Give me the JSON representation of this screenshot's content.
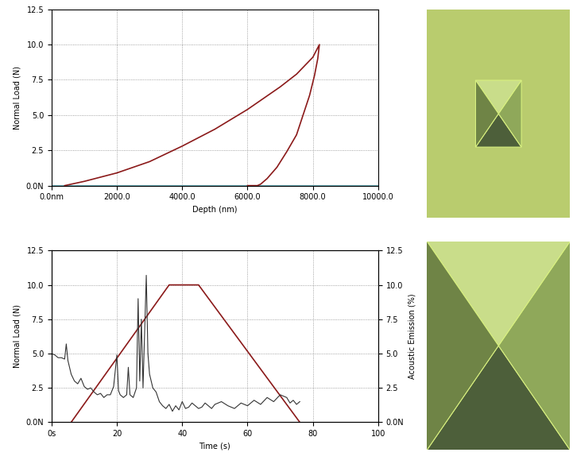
{
  "chart_data": [
    {
      "type": "line",
      "xlabel": "Depth (nm)",
      "ylabel": "Normal Load (N)",
      "xlim": [
        0,
        10000
      ],
      "ylim": [
        0,
        12.5
      ],
      "xticks": [
        {
          "value": 0,
          "label": "0.0nm"
        },
        2000.0,
        4000.0,
        6000.0,
        8000.0,
        10000.0
      ],
      "yticks": [
        {
          "value": 0,
          "label": "0.0N"
        },
        2.5,
        5.0,
        7.5,
        10.0,
        12.5
      ],
      "grid": true,
      "series": [
        {
          "color": "#4a9ca8",
          "x": [
            0,
            10000
          ],
          "values": [
            0,
            0
          ]
        },
        {
          "color": "#8b1a1a",
          "x": [
            400,
            1000,
            2000,
            3000,
            4000,
            5000,
            6000,
            7000,
            7500,
            8000,
            8200,
            8150,
            8050,
            7900,
            7700,
            7500,
            7200,
            6900,
            6600,
            6400,
            6300,
            6000
          ],
          "values": [
            0,
            0.3,
            0.9,
            1.7,
            2.8,
            4.0,
            5.4,
            7.0,
            7.9,
            9.1,
            10.0,
            9.0,
            7.8,
            6.4,
            5.0,
            3.6,
            2.4,
            1.3,
            0.5,
            0.1,
            0,
            0
          ]
        }
      ]
    },
    {
      "type": "line",
      "xlabel": "Time (s)",
      "ylabel": "Normal Load (N)",
      "y2label": "Acoustic Emission (%)",
      "xlim": [
        0,
        100
      ],
      "ylim": [
        0,
        12.5
      ],
      "y2lim": [
        0,
        12.5
      ],
      "xticks": [
        {
          "value": 0,
          "label": "0s"
        },
        20,
        40,
        60,
        80,
        100
      ],
      "yticks": [
        {
          "value": 0,
          "label": "0.0N"
        },
        2.5,
        5.0,
        7.5,
        10.0,
        12.5
      ],
      "y2ticks": [
        {
          "value": 0,
          "label": "0.0N"
        },
        2.5,
        5.0,
        7.5,
        10.0,
        12.5
      ],
      "grid": true,
      "series": [
        {
          "color": "#8b1a1a",
          "x": [
            6,
            36,
            45,
            76
          ],
          "values": [
            0,
            10,
            10,
            0
          ]
        },
        {
          "color": "#333333",
          "axis": "y2",
          "x": [
            0,
            1,
            2,
            3,
            4,
            4.5,
            5,
            6,
            7,
            8,
            9,
            10,
            11,
            12,
            13,
            14,
            15,
            16,
            17,
            18,
            19,
            20,
            20.5,
            21,
            22,
            23,
            23.5,
            24,
            25,
            26,
            26.5,
            27,
            27.5,
            28,
            29,
            29.5,
            30,
            31,
            32,
            33,
            34,
            35,
            36,
            37,
            38,
            39,
            40,
            41,
            42,
            43,
            44,
            45,
            46,
            47,
            48,
            49,
            50,
            52,
            54,
            56,
            58,
            60,
            62,
            64,
            66,
            68,
            70,
            72,
            73,
            74,
            75,
            76
          ],
          "values": [
            5.0,
            4.9,
            4.7,
            4.7,
            4.6,
            5.7,
            4.5,
            3.5,
            3.0,
            2.8,
            3.2,
            2.6,
            2.4,
            2.5,
            2.2,
            2.0,
            2.1,
            1.8,
            2.0,
            2.0,
            2.6,
            4.9,
            2.3,
            2.0,
            1.8,
            2.0,
            4.0,
            2.0,
            1.8,
            2.5,
            9.0,
            3.0,
            7.5,
            2.5,
            10.7,
            5.0,
            3.5,
            2.5,
            2.2,
            1.5,
            1.2,
            1.0,
            1.3,
            0.8,
            1.2,
            0.9,
            1.5,
            1.0,
            1.1,
            1.4,
            1.2,
            1.0,
            1.1,
            1.4,
            1.2,
            1.0,
            1.3,
            1.5,
            1.2,
            1.0,
            1.4,
            1.2,
            1.6,
            1.3,
            1.8,
            1.5,
            2.0,
            1.8,
            1.4,
            1.6,
            1.3,
            1.5
          ]
        }
      ]
    }
  ]
}
